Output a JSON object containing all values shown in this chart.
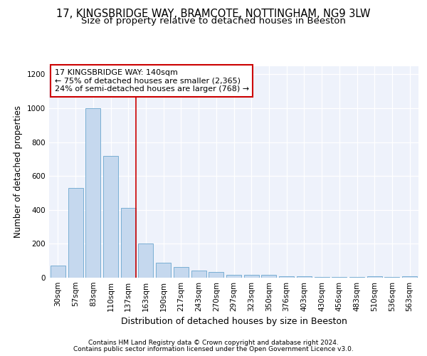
{
  "title1": "17, KINGSBRIDGE WAY, BRAMCOTE, NOTTINGHAM, NG9 3LW",
  "title2": "Size of property relative to detached houses in Beeston",
  "xlabel": "Distribution of detached houses by size in Beeston",
  "ylabel": "Number of detached properties",
  "categories": [
    "30sqm",
    "57sqm",
    "83sqm",
    "110sqm",
    "137sqm",
    "163sqm",
    "190sqm",
    "217sqm",
    "243sqm",
    "270sqm",
    "297sqm",
    "323sqm",
    "350sqm",
    "376sqm",
    "403sqm",
    "430sqm",
    "456sqm",
    "483sqm",
    "510sqm",
    "536sqm",
    "563sqm"
  ],
  "values": [
    70,
    530,
    1000,
    720,
    410,
    200,
    90,
    62,
    42,
    32,
    18,
    18,
    15,
    8,
    8,
    6,
    6,
    6,
    8,
    3,
    10
  ],
  "bar_color": "#c5d8ee",
  "bar_edge_color": "#7aafd4",
  "annotation_text": "17 KINGSBRIDGE WAY: 140sqm\n← 75% of detached houses are smaller (2,365)\n24% of semi-detached houses are larger (768) →",
  "annotation_box_color": "#ffffff",
  "annotation_box_edge": "#cc0000",
  "red_line_color": "#cc0000",
  "footer1": "Contains HM Land Registry data © Crown copyright and database right 2024.",
  "footer2": "Contains public sector information licensed under the Open Government Licence v3.0.",
  "ylim": [
    0,
    1250
  ],
  "background_color": "#ffffff",
  "plot_bg_color": "#eef2fb",
  "title1_fontsize": 10.5,
  "title2_fontsize": 9.5,
  "ylabel_fontsize": 8.5,
  "xlabel_fontsize": 9,
  "tick_fontsize": 7.5,
  "footer_fontsize": 6.5,
  "ann_fontsize": 8
}
